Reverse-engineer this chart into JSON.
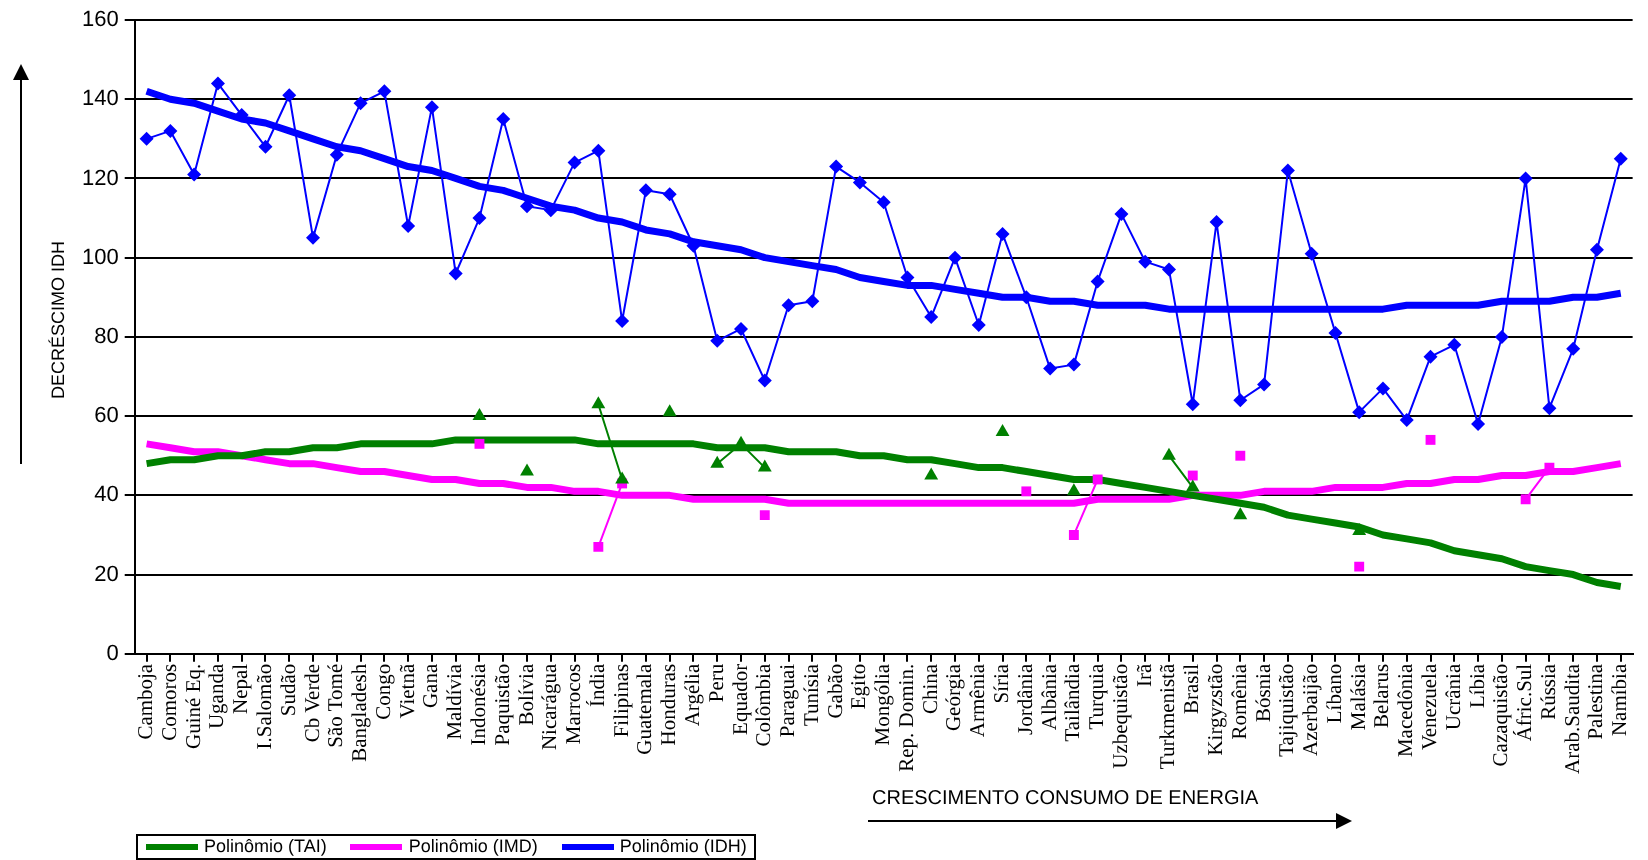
{
  "chart_data": {
    "type": "line",
    "xlabel": "CRESCIMENTO CONSUMO DE  ENERGIA",
    "ylabel": "DECRÉSCIMO IDH",
    "categories": [
      "Camboja",
      "Comoros",
      "Guiné Eq.",
      "Uganda",
      "Nepal",
      "I.Salomão",
      "Sudão",
      "Cb Verde",
      "São Tomé",
      "Bangladesh",
      "Congo",
      "Vietnã",
      "Gana",
      "Maldívia",
      "Indonésia",
      "Paquistão",
      "Bolívia",
      "Nicarágua",
      "Marrocos",
      "Índia",
      "Filipinas",
      "Guatemala",
      "Honduras",
      "Argélia",
      "Peru",
      "Equador",
      "Colômbia",
      "Paraguai",
      "Tunísia",
      "Gabão",
      "Egito",
      "Mongólia",
      "Rep. Domin.",
      "China",
      "Geórgia",
      "Armênia",
      "Síria",
      "Jordânia",
      "Albânia",
      "Tailândia",
      "Turquia",
      "Uzbequistão",
      "Irã",
      "Turkmenistã",
      "Brasil",
      "Kirgyzstão",
      "Romênia",
      "Bósnia",
      "Tajiquistão",
      "Azerbaijão",
      "Líbano",
      "Malásia",
      "Belarus",
      "Macedônia",
      "Venezuela",
      "Ucrânia",
      "Líbia",
      "Cazaquistão",
      "Áfric.Sul",
      "Rússia",
      "Arab.Saudita",
      "Palestina",
      "Namíbia"
    ],
    "series": [
      {
        "type": "line",
        "color": "#0000ff",
        "marker": "diamond",
        "values": [
          130,
          132,
          121,
          144,
          136,
          128,
          141,
          105,
          126,
          139,
          142,
          108,
          138,
          96,
          110,
          135,
          113,
          112,
          124,
          127,
          84,
          117,
          116,
          103,
          79,
          82,
          69,
          88,
          89,
          123,
          119,
          114,
          95,
          85,
          100,
          83,
          106,
          90,
          72,
          73,
          94,
          111,
          99,
          97,
          63,
          109,
          64,
          68,
          122,
          101,
          81,
          61,
          67,
          59,
          75,
          78,
          58,
          80,
          120,
          62,
          77,
          102,
          125
        ]
      },
      {
        "type": "line",
        "color": "#008000",
        "marker": "triangle",
        "values": [
          null,
          null,
          null,
          null,
          null,
          null,
          null,
          null,
          null,
          null,
          null,
          null,
          null,
          null,
          60,
          null,
          46,
          null,
          null,
          63,
          44,
          null,
          61,
          null,
          48,
          53,
          47,
          null,
          null,
          null,
          null,
          null,
          null,
          45,
          null,
          null,
          56,
          null,
          null,
          41,
          null,
          null,
          null,
          50,
          42,
          null,
          35,
          null,
          null,
          null,
          null,
          31,
          null,
          null,
          null,
          null,
          null,
          null,
          null,
          null,
          null,
          null,
          null
        ]
      },
      {
        "type": "line",
        "color": "#ff00ff",
        "marker": "square",
        "values": [
          null,
          null,
          null,
          null,
          null,
          null,
          null,
          null,
          null,
          null,
          null,
          null,
          null,
          null,
          53,
          null,
          null,
          null,
          null,
          27,
          43,
          null,
          null,
          null,
          null,
          null,
          35,
          null,
          null,
          null,
          null,
          null,
          null,
          null,
          null,
          null,
          null,
          41,
          null,
          30,
          44,
          null,
          null,
          null,
          45,
          null,
          50,
          null,
          null,
          null,
          null,
          22,
          null,
          null,
          54,
          null,
          null,
          null,
          39,
          47,
          null,
          null,
          null
        ]
      },
      {
        "name": "Polinômio (TAI)",
        "type": "line",
        "color": "#008000",
        "marker": "none",
        "values": [
          48,
          49,
          49,
          50,
          50,
          51,
          51,
          52,
          52,
          53,
          53,
          53,
          53,
          54,
          54,
          54,
          54,
          54,
          54,
          53,
          53,
          53,
          53,
          53,
          52,
          52,
          52,
          51,
          51,
          51,
          50,
          50,
          49,
          49,
          48,
          47,
          47,
          46,
          45,
          44,
          44,
          43,
          42,
          41,
          40,
          39,
          38,
          37,
          35,
          34,
          33,
          32,
          30,
          29,
          28,
          26,
          25,
          24,
          22,
          21,
          20,
          18,
          17
        ]
      },
      {
        "name": "Polinômio (IMD)",
        "type": "line",
        "color": "#ff00ff",
        "marker": "none",
        "values": [
          53,
          52,
          51,
          51,
          50,
          49,
          48,
          48,
          47,
          46,
          46,
          45,
          44,
          44,
          43,
          43,
          42,
          42,
          41,
          41,
          40,
          40,
          40,
          39,
          39,
          39,
          39,
          38,
          38,
          38,
          38,
          38,
          38,
          38,
          38,
          38,
          38,
          38,
          38,
          38,
          39,
          39,
          39,
          39,
          40,
          40,
          40,
          41,
          41,
          41,
          42,
          42,
          42,
          43,
          43,
          44,
          44,
          45,
          45,
          46,
          46,
          47,
          48
        ]
      },
      {
        "name": "Polinômio (IDH)",
        "type": "line",
        "color": "#0000ff",
        "marker": "none",
        "values": [
          142,
          140,
          139,
          137,
          135,
          134,
          132,
          130,
          128,
          127,
          125,
          123,
          122,
          120,
          118,
          117,
          115,
          113,
          112,
          110,
          109,
          107,
          106,
          104,
          103,
          102,
          100,
          99,
          98,
          97,
          95,
          94,
          93,
          93,
          92,
          91,
          90,
          90,
          89,
          89,
          88,
          88,
          88,
          87,
          87,
          87,
          87,
          87,
          87,
          87,
          87,
          87,
          87,
          88,
          88,
          88,
          88,
          89,
          89,
          89,
          90,
          90,
          91
        ]
      }
    ],
    "ylim": [
      0,
      160
    ],
    "yticks": [
      0,
      20,
      40,
      60,
      80,
      100,
      120,
      140,
      160
    ],
    "grid": "y",
    "legend": "bottom"
  }
}
